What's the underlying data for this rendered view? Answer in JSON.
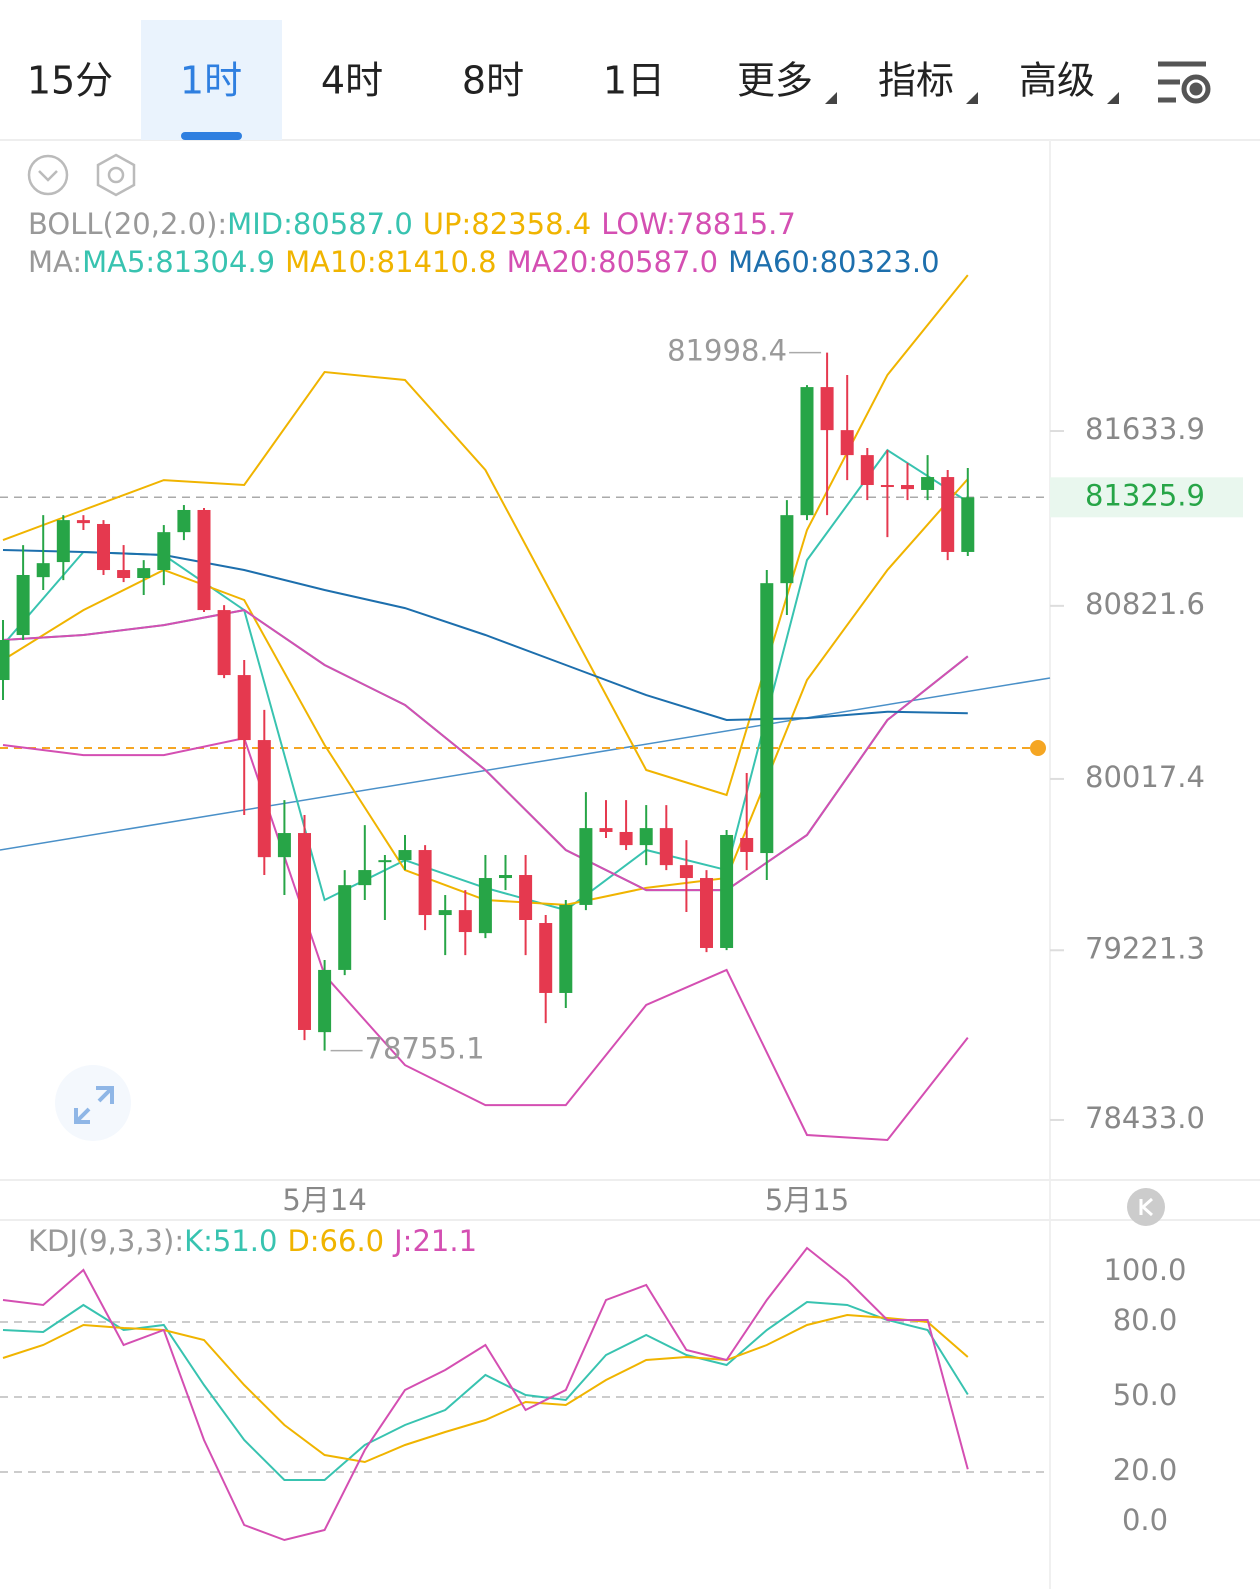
{
  "tabs": [
    {
      "label": "15分"
    },
    {
      "label": "1时"
    },
    {
      "label": "4时"
    },
    {
      "label": "8时"
    },
    {
      "label": "1日"
    },
    {
      "label": "更多",
      "dropdown": true
    },
    {
      "label": "指标",
      "dropdown": true
    },
    {
      "label": "高级",
      "dropdown": true
    }
  ],
  "active_tab": 1,
  "chart_data": [
    {
      "type": "candlestick",
      "up_color": "#27a547",
      "down_color": "#e5394f",
      "tick_marks": true,
      "categories": [
        null,
        null,
        null,
        null,
        null,
        null,
        null,
        null,
        null,
        null,
        null,
        null,
        null,
        null,
        null,
        null,
        "5月14",
        null,
        null,
        null,
        null,
        null,
        null,
        null,
        null,
        null,
        null,
        null,
        null,
        null,
        null,
        null,
        null,
        null,
        null,
        null,
        null,
        null,
        null,
        null,
        "5月15",
        null,
        null,
        null,
        null,
        null,
        null,
        null,
        null
      ],
      "open": [
        80477,
        80686,
        80955,
        81025,
        81220,
        81202,
        80988,
        80951,
        80988,
        81164,
        81267,
        80802,
        80500,
        80198,
        79654,
        79766,
        78841,
        79130,
        79524,
        79631,
        79640,
        79687,
        79385,
        79408,
        79301,
        79557,
        79571,
        79348,
        79023,
        79432,
        79789,
        79771,
        79710,
        79789,
        79617,
        79557,
        79232,
        79743,
        79673,
        80927,
        81243,
        81838,
        81638,
        81522,
        81383,
        81383,
        81360,
        81420,
        81072
      ],
      "high": [
        80756,
        81104,
        81243,
        81243,
        81243,
        81220,
        81104,
        81034,
        81197,
        81290,
        81276,
        80825,
        80570,
        80338,
        79919,
        79850,
        79176,
        79594,
        79803,
        79664,
        79757,
        79710,
        79478,
        79501,
        79664,
        79664,
        79664,
        79385,
        79455,
        79956,
        79919,
        79919,
        79896,
        79896,
        79733,
        79594,
        79780,
        80045,
        80988,
        81313,
        81847,
        81998.4,
        81894,
        81555,
        81545,
        81485,
        81522,
        81453,
        81462
      ],
      "low": [
        80384,
        80663,
        80895,
        80941,
        81174,
        80965,
        80932,
        80872,
        80918,
        81127,
        80793,
        80486,
        79850,
        79571,
        79478,
        78804,
        78755.1,
        79106,
        79455,
        79362,
        79594,
        79315,
        79199,
        79199,
        79278,
        79501,
        79199,
        78883,
        78953,
        79408,
        79743,
        79687,
        79617,
        79594,
        79399,
        79213,
        79222,
        79594,
        79548,
        80779,
        81220,
        81243,
        81406,
        81313,
        81141,
        81313,
        81313,
        81034,
        81053
      ],
      "close": [
        80663,
        80965,
        81020,
        81220,
        81206,
        80988,
        80951,
        80997,
        81164,
        81267,
        80802,
        80500,
        80198,
        79654,
        79766,
        78851,
        79130,
        79524,
        79594,
        79640,
        79687,
        79385,
        79408,
        79306,
        79557,
        79571,
        79362,
        79023,
        79432,
        79789,
        79771,
        79710,
        79789,
        79617,
        79557,
        79232,
        79757,
        79678,
        80927,
        81243,
        81838,
        81638,
        81522,
        81383,
        81374,
        81364,
        81420,
        81072,
        81325.9
      ],
      "xlim": [
        -0.15,
        52.09
      ],
      "ylim": [
        78154,
        82986
      ],
      "yticks": [
        81633.9,
        80821.6,
        80017.4,
        79221.3,
        {
          "value": 78433,
          "label": "78433.0"
        }
      ],
      "indicator_groups": [
        {
          "title": "BOLL(20,2.0):",
          "series": [
            {
              "name": "MID:80587.0",
              "color": "#38c3b0",
              "x": [
                0,
                4,
                8,
                12,
                16,
                20,
                24,
                28,
                32,
                36,
                40,
                44,
                48
              ],
              "values": [
                80663,
                80686,
                80732,
                80802,
                80547,
                80361,
                80059,
                79687,
                79501,
                79501,
                79757,
                80291,
                80587.0
              ]
            },
            {
              "name": "UP:82358.4",
              "color": "#f0b400",
              "x": [
                0,
                4,
                8,
                12,
                16,
                20,
                24,
                28,
                32,
                36,
                40,
                44,
                48
              ],
              "values": [
                81127,
                81267,
                81406,
                81383,
                81908,
                81871,
                81453,
                80756,
                80059,
                79943,
                81174,
                81894,
                82358.4
              ]
            },
            {
              "name": "LOW:78815.7",
              "color": "#d44fb2",
              "x": [
                0,
                4,
                8,
                12,
                16,
                20,
                24,
                28,
                32,
                36,
                40,
                44,
                48
              ],
              "values": [
                80175,
                80128,
                80128,
                80207,
                79106,
                78688,
                78502,
                78502,
                78967,
                79130,
                78363,
                78340,
                78815.7
              ]
            }
          ]
        },
        {
          "title": "MA:",
          "series": [
            {
              "name": "MA5:81304.9",
              "color": "#38c3b0",
              "x": [
                0,
                4,
                8,
                12,
                16,
                20,
                24,
                28,
                32,
                36,
                40,
                44,
                48
              ],
              "values": [
                80640,
                81072,
                81058,
                80802,
                79455,
                79640,
                79511,
                79408,
                79687,
                79594,
                81034,
                81545,
                81304.9
              ]
            },
            {
              "name": "MA10:81410.8",
              "color": "#f0b400",
              "x": [
                0,
                4,
                8,
                12,
                16,
                20,
                24,
                28,
                32,
                36,
                40,
                44,
                48
              ],
              "values": [
                80570,
                80802,
                80988,
                80849,
                80175,
                79594,
                79455,
                79432,
                79511,
                79557,
                80477,
                80988,
                81410.8
              ]
            },
            {
              "name": "MA20:80587.0",
              "color": "#d44fb2",
              "x": [
                0,
                4,
                8,
                12,
                16,
                20,
                24,
                28,
                32,
                36,
                40,
                44,
                48
              ],
              "values": [
                80663,
                80686,
                80732,
                80802,
                80547,
                80361,
                80059,
                79687,
                79501,
                79501,
                79757,
                80291,
                80587.0
              ]
            },
            {
              "name": "MA60:80323.0",
              "color": "#1d6fad",
              "x": [
                0,
                4,
                8,
                12,
                16,
                20,
                24,
                28,
                32,
                36,
                40,
                44,
                48
              ],
              "values": [
                81081,
                81072,
                81058,
                80988,
                80895,
                80811,
                80686,
                80547,
                80407,
                80291,
                80300,
                80330,
                80323.0
              ]
            }
          ]
        }
      ]
    },
    {
      "type": "line",
      "title": "KDJ(9,3,3):",
      "xlim": [
        -0.15,
        52.09
      ],
      "ylim": [
        -26.8,
        120.8
      ],
      "yticks": [
        {
          "value": 100,
          "label": "100.0"
        },
        {
          "value": 80,
          "label": "80.0"
        },
        {
          "value": 50,
          "label": "50.0"
        },
        {
          "value": 20,
          "label": "20.0"
        },
        {
          "value": 0,
          "label": "0.0"
        }
      ],
      "grid_lines": [
        80,
        50,
        20
      ],
      "series": [
        {
          "name": "K:51.0",
          "color": "#38c3b0",
          "x": [
            0,
            2,
            4,
            6,
            8,
            10,
            12,
            14,
            16,
            18,
            20,
            22,
            24,
            26,
            28,
            30,
            32,
            34,
            36,
            38,
            40,
            42,
            44,
            46,
            48
          ],
          "values": [
            76.8,
            76,
            86.8,
            76.8,
            78.8,
            54.8,
            32.8,
            16.8,
            16.8,
            30.8,
            38.8,
            44.8,
            58.8,
            50.8,
            48.8,
            66.8,
            74.8,
            66.8,
            62.8,
            76.8,
            88,
            86.8,
            80.8,
            76.8,
            51.0
          ]
        },
        {
          "name": "D:66.0",
          "color": "#f0b400",
          "x": [
            0,
            2,
            4,
            6,
            8,
            10,
            12,
            14,
            16,
            18,
            20,
            22,
            24,
            26,
            28,
            30,
            32,
            34,
            36,
            38,
            40,
            42,
            44,
            46,
            48
          ],
          "values": [
            65.6,
            70.8,
            78.8,
            77.6,
            76.8,
            72.8,
            54.8,
            38.8,
            26.8,
            24,
            30.8,
            36,
            40.8,
            48,
            46.8,
            56.8,
            64.8,
            66,
            64.8,
            70.8,
            78.8,
            82.8,
            81.6,
            80,
            66.0
          ]
        },
        {
          "name": "J:21.1",
          "color": "#d44fb2",
          "x": [
            0,
            2,
            4,
            6,
            8,
            10,
            12,
            14,
            16,
            18,
            20,
            22,
            24,
            26,
            28,
            30,
            32,
            34,
            36,
            38,
            40,
            42,
            44,
            46,
            48
          ],
          "values": [
            88.8,
            86.8,
            100.8,
            70.8,
            76.8,
            32.8,
            -1.2,
            -7.2,
            -3.2,
            28.8,
            52.8,
            60.8,
            70.8,
            44.8,
            52.8,
            88.8,
            94.8,
            68.8,
            64.8,
            88.8,
            109.6,
            96.8,
            80.8,
            80.8,
            21.1
          ]
        }
      ]
    }
  ]
}
